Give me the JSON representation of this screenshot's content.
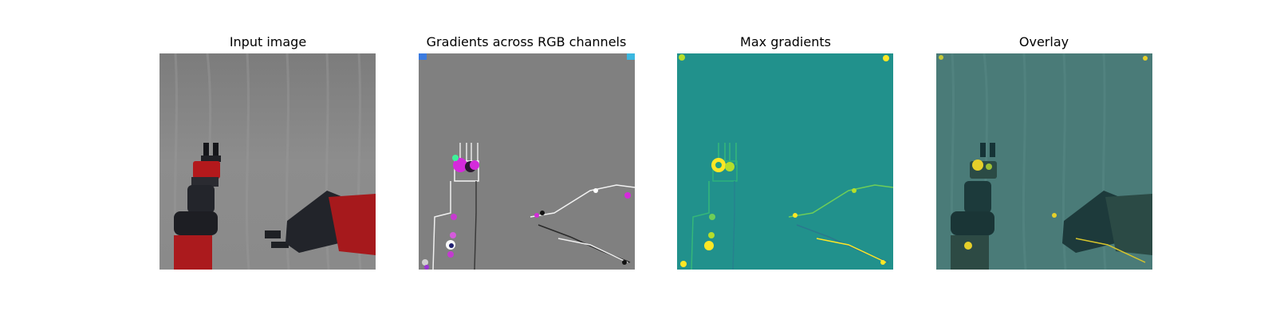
{
  "figure": {
    "panels": [
      {
        "title": "Input image"
      },
      {
        "title": "Gradients across RGB channels"
      },
      {
        "title": "Max gradients"
      },
      {
        "title": "Overlay"
      }
    ]
  },
  "colors": {
    "background": "#ffffff",
    "input_backdrop": "#838383",
    "robot_red": "#b3191c",
    "robot_dark": "#23252b",
    "gradient_gray": "#808080",
    "gradient_magenta": "#d52adb",
    "viridis_teal": "#21918c",
    "viridis_yellow": "#fde725",
    "overlay_teal": "#4a7b78"
  }
}
